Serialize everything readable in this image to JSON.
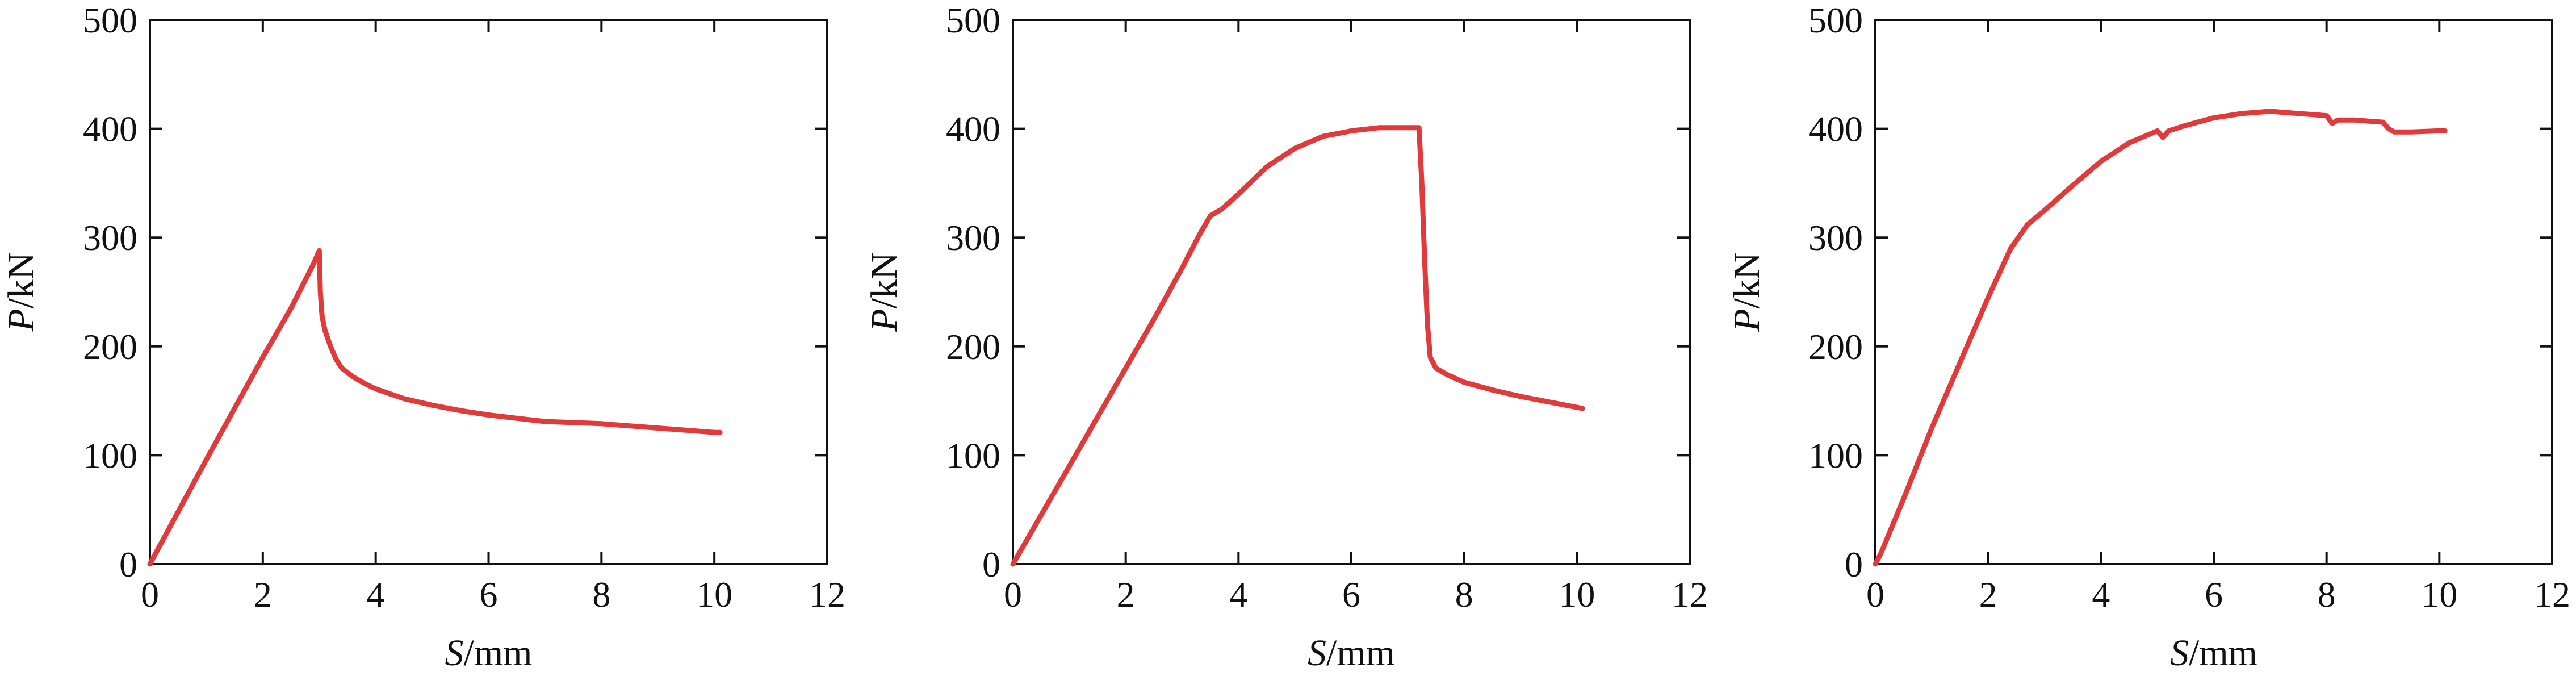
{
  "chart_data": [
    {
      "type": "line",
      "title": "",
      "xlabel": {
        "var": "S",
        "unit": "/mm"
      },
      "ylabel": {
        "var": "P",
        "unit": "/kN"
      },
      "xlim": [
        0,
        12
      ],
      "ylim": [
        0,
        500
      ],
      "xticks": [
        "0",
        "2",
        "4",
        "6",
        "8",
        "10",
        "12"
      ],
      "yticks": [
        "0",
        "100",
        "200",
        "300",
        "400",
        "500"
      ],
      "grid": false,
      "color": "#e03a3a",
      "series": [
        {
          "x": [
            0,
            0.5,
            1.0,
            1.5,
            2.0,
            2.5,
            2.9,
            3.0,
            3.02,
            3.05,
            3.1,
            3.2,
            3.3,
            3.4,
            3.6,
            3.8,
            4.0,
            4.5,
            5.0,
            5.5,
            6.0,
            6.5,
            7.0,
            7.5,
            8.0,
            8.5,
            9.0,
            9.5,
            10.0,
            10.1
          ],
          "y": [
            0,
            48,
            96,
            143,
            190,
            235,
            276,
            288,
            250,
            228,
            215,
            200,
            188,
            180,
            172,
            166,
            161,
            152,
            146,
            141,
            137,
            134,
            131,
            130,
            129,
            127,
            125,
            123,
            121,
            121
          ]
        }
      ]
    },
    {
      "type": "line",
      "title": "",
      "xlabel": {
        "var": "S",
        "unit": "/mm"
      },
      "ylabel": {
        "var": "P",
        "unit": "/kN"
      },
      "xlim": [
        0,
        12
      ],
      "ylim": [
        0,
        500
      ],
      "xticks": [
        "0",
        "2",
        "4",
        "6",
        "8",
        "10",
        "12"
      ],
      "yticks": [
        "0",
        "100",
        "200",
        "300",
        "400",
        "500"
      ],
      "grid": false,
      "color": "#e03a3a",
      "series": [
        {
          "x": [
            0,
            0.5,
            1.0,
            1.5,
            2.0,
            2.5,
            3.0,
            3.3,
            3.5,
            3.7,
            4.0,
            4.5,
            5.0,
            5.5,
            6.0,
            6.5,
            7.0,
            7.2,
            7.25,
            7.3,
            7.35,
            7.4,
            7.5,
            7.7,
            8.0,
            8.5,
            9.0,
            9.5,
            10.0,
            10.1
          ],
          "y": [
            0,
            45,
            90,
            135,
            180,
            225,
            272,
            302,
            320,
            326,
            340,
            365,
            382,
            393,
            398,
            401,
            401,
            401,
            350,
            280,
            220,
            190,
            180,
            174,
            167,
            160,
            154,
            149,
            144,
            143
          ]
        }
      ]
    },
    {
      "type": "line",
      "title": "",
      "xlabel": {
        "var": "S",
        "unit": "/mm"
      },
      "ylabel": {
        "var": "P",
        "unit": "/kN"
      },
      "xlim": [
        0,
        12
      ],
      "ylim": [
        0,
        500
      ],
      "xticks": [
        "0",
        "2",
        "4",
        "6",
        "8",
        "10",
        "12"
      ],
      "yticks": [
        "0",
        "100",
        "200",
        "300",
        "400",
        "500"
      ],
      "grid": false,
      "color": "#e03a3a",
      "series": [
        {
          "x": [
            0,
            0.1,
            0.5,
            1.0,
            1.5,
            2.0,
            2.4,
            2.7,
            3.0,
            3.5,
            4.0,
            4.5,
            5.0,
            5.1,
            5.2,
            5.5,
            6.0,
            6.5,
            7.0,
            7.5,
            8.0,
            8.1,
            8.2,
            8.5,
            9.0,
            9.1,
            9.2,
            9.5,
            10.0,
            10.1
          ],
          "y": [
            0,
            10,
            60,
            125,
            185,
            245,
            290,
            312,
            325,
            348,
            370,
            387,
            398,
            392,
            398,
            403,
            410,
            414,
            416,
            414,
            412,
            405,
            408,
            408,
            406,
            400,
            397,
            397,
            398,
            398
          ]
        }
      ]
    }
  ]
}
